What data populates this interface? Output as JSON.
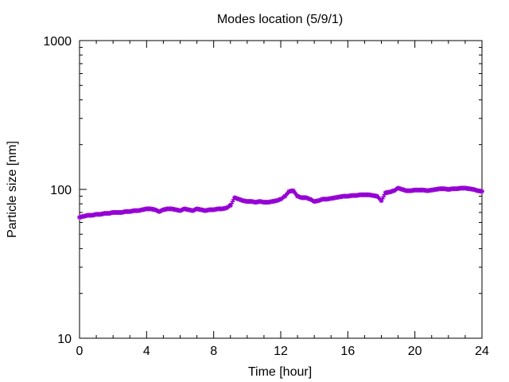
{
  "chart_data": {
    "type": "scatter",
    "title": "Modes location (5/9/1)",
    "xlabel": "Time [hour]",
    "ylabel": "Particle size [nm]",
    "xlim": [
      0,
      24
    ],
    "ylim": [
      10,
      1000
    ],
    "y_scale": "log",
    "x_ticks": [
      0,
      4,
      8,
      12,
      16,
      20,
      24
    ],
    "x_tick_labels": [
      "0",
      "4",
      "8",
      "12",
      "16",
      "20",
      "24"
    ],
    "y_ticks": [
      10,
      100,
      1000
    ],
    "y_tick_labels": [
      "10",
      "100",
      "1000"
    ],
    "grid": false,
    "legend": "none",
    "marker_color": "#9400d3",
    "series": [
      {
        "x": [
          0.0,
          0.25,
          0.5,
          0.75,
          1.0,
          1.25,
          1.5,
          1.75,
          2.0,
          2.25,
          2.5,
          2.75,
          3.0,
          3.25,
          3.5,
          3.75,
          4.0,
          4.25,
          4.5,
          4.75,
          5.0,
          5.25,
          5.5,
          5.75,
          6.0,
          6.25,
          6.5,
          6.75,
          7.0,
          7.25,
          7.5,
          7.75,
          8.0,
          8.25,
          8.5,
          8.75,
          9.0,
          9.25,
          9.5,
          9.75,
          10.0,
          10.25,
          10.5,
          10.75,
          11.0,
          11.25,
          11.5,
          11.75,
          12.0,
          12.25,
          12.5,
          12.75,
          13.0,
          13.25,
          13.5,
          13.75,
          14.0,
          14.25,
          14.5,
          14.75,
          15.0,
          15.25,
          15.5,
          15.75,
          16.0,
          16.25,
          16.5,
          16.75,
          17.0,
          17.25,
          17.5,
          17.75,
          18.0,
          18.25,
          18.5,
          18.75,
          19.0,
          19.25,
          19.5,
          19.75,
          20.0,
          20.25,
          20.5,
          20.75,
          21.0,
          21.25,
          21.5,
          21.75,
          22.0,
          22.25,
          22.5,
          22.75,
          23.0,
          23.25,
          23.5,
          23.75,
          24.0
        ],
        "y": [
          65,
          66,
          67,
          67,
          68,
          68,
          69,
          69,
          70,
          70,
          70,
          71,
          71,
          72,
          72,
          73,
          74,
          74,
          73,
          71,
          73,
          74,
          74,
          73,
          72,
          74,
          73,
          72,
          74,
          73,
          72,
          73,
          73,
          74,
          74,
          75,
          78,
          88,
          86,
          84,
          83,
          83,
          82,
          83,
          82,
          82,
          83,
          84,
          86,
          90,
          97,
          98,
          90,
          88,
          88,
          86,
          83,
          84,
          86,
          86,
          87,
          88,
          89,
          90,
          90,
          91,
          91,
          92,
          92,
          92,
          91,
          90,
          84,
          95,
          96,
          98,
          102,
          100,
          98,
          98,
          99,
          99,
          99,
          98,
          99,
          100,
          101,
          101,
          100,
          101,
          101,
          102,
          102,
          101,
          100,
          98,
          97
        ]
      }
    ]
  }
}
